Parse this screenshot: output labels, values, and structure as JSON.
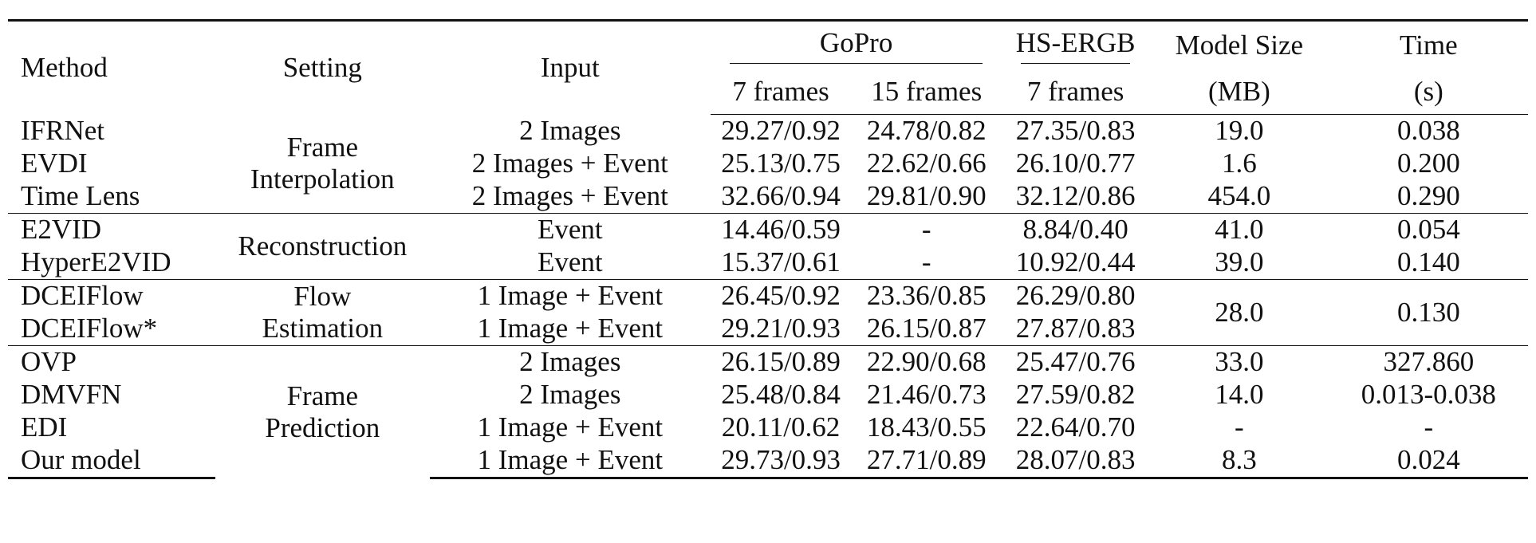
{
  "table": {
    "headers": {
      "method": "Method",
      "setting": "Setting",
      "input": "Input",
      "gopro": "GoPro",
      "hsergb": "HS-ERGB",
      "model_size_1": "Model Size",
      "model_size_2": "(MB)",
      "time_1": "Time",
      "time_2": "(s)",
      "gopro_7": "7 frames",
      "gopro_15": "15 frames",
      "hsergb_7": "7 frames"
    },
    "groups": [
      {
        "setting": [
          "Frame",
          "Interpolation"
        ],
        "rows": [
          {
            "method": "IFRNet",
            "input": "2 Images",
            "gopro_7": "29.27/0.92",
            "gopro_15": "24.78/0.82",
            "hsergb_7": "27.35/0.83",
            "size": "19.0",
            "time": "0.038",
            "bold": [
              "time"
            ]
          },
          {
            "method": "EVDI",
            "input": "2 Images + Event",
            "gopro_7": "25.13/0.75",
            "gopro_15": "22.62/0.66",
            "hsergb_7": "26.10/0.77",
            "size": "1.6",
            "time": "0.200",
            "bold": [
              "size"
            ]
          },
          {
            "method": "Time Lens",
            "input": "2 Images + Event",
            "gopro_7": "32.66/0.94",
            "gopro_15": "29.81/0.90",
            "hsergb_7": "32.12/0.86",
            "size": "454.0",
            "time": "0.290",
            "bold": [
              "gopro_7",
              "gopro_15",
              "hsergb_7"
            ]
          }
        ]
      },
      {
        "setting": [
          "Reconstruction"
        ],
        "rows": [
          {
            "method": "E2VID",
            "input": "Event",
            "gopro_7": "14.46/0.59",
            "gopro_15": "-",
            "hsergb_7": "8.84/0.40",
            "size": "41.0",
            "time": "0.054",
            "bold": []
          },
          {
            "method": "HyperE2VID",
            "input": "Event",
            "gopro_7": "15.37/0.61",
            "gopro_15": "-",
            "hsergb_7": "10.92/0.44",
            "size": "39.0",
            "time": "0.140",
            "bold": []
          }
        ]
      },
      {
        "setting": [
          "Flow",
          "Estimation"
        ],
        "shared_size": "28.0",
        "shared_time": "0.130",
        "rows": [
          {
            "method": "DCEIFlow",
            "input": "1 Image + Event",
            "gopro_7": "26.45/0.92",
            "gopro_15": "23.36/0.85",
            "hsergb_7": "26.29/0.80",
            "bold": []
          },
          {
            "method": "DCEIFlow*",
            "input": "1 Image + Event",
            "gopro_7": "29.21/0.93",
            "gopro_15": "26.15/0.87",
            "hsergb_7": "27.87/0.83",
            "bold": []
          }
        ]
      },
      {
        "setting": [
          "Frame",
          "Prediction"
        ],
        "rows": [
          {
            "method": "OVP",
            "input": "2 Images",
            "gopro_7": "26.15/0.89",
            "gopro_15": "22.90/0.68",
            "hsergb_7": "25.47/0.76",
            "size": "33.0",
            "time": "327.860",
            "bold": []
          },
          {
            "method": "DMVFN",
            "input": "2 Images",
            "gopro_7": "25.48/0.84",
            "gopro_15": "21.46/0.73",
            "hsergb_7": "27.59/0.82",
            "size": "14.0",
            "time": "0.013-0.038",
            "bold": []
          },
          {
            "method": "EDI",
            "input": "1 Image + Event",
            "gopro_7": "20.11/0.62",
            "gopro_15": "18.43/0.55",
            "hsergb_7": "22.64/0.70",
            "size": "-",
            "time": "-",
            "bold": []
          },
          {
            "method": "Our model",
            "input": "1 Image + Event",
            "gopro_7": "29.73/0.93",
            "gopro_15": "27.71/0.89",
            "hsergb_7": "28.07/0.83",
            "size": "8.3",
            "time": "0.024",
            "bold": [
              "gopro_7",
              "gopro_15",
              "hsergb_7",
              "size",
              "time"
            ]
          }
        ]
      }
    ]
  }
}
